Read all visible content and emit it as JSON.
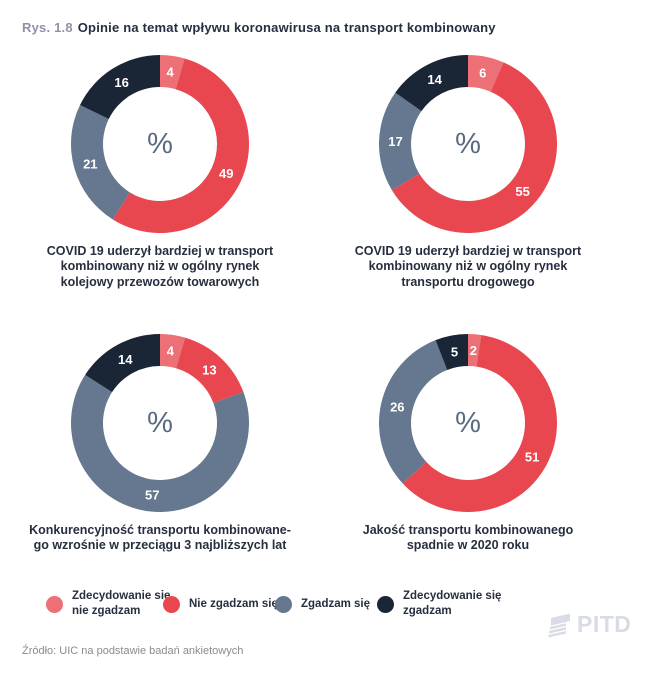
{
  "title": {
    "prefix": "Rys. 1.8",
    "text": "Opinie na temat wpływu koronawirusa na transport kombinowany"
  },
  "palette": [
    "#EE7077",
    "#E8474F",
    "#657890",
    "#1A2536"
  ],
  "value_label_color": "#FFFFFF",
  "center_label_color": "#5A6A80",
  "chart_data": [
    {
      "type": "pie",
      "subtype": "donut",
      "title": "COVID 19 uderzył bardziej w transport\nkombinowany niż w ogólny rynek\nkolejowy przewozów towarowych",
      "categories": [
        "Zdecydowanie się nie zgadzam",
        "Nie zgadzam się",
        "Zgadzam się",
        "Zdecydowanie się zgadzam"
      ],
      "values": [
        4,
        49,
        21,
        16
      ],
      "unit": "%",
      "center_label": "%"
    },
    {
      "type": "pie",
      "subtype": "donut",
      "title": "COVID 19 uderzył bardziej w transport\nkombinowany niż w ogólny rynek\ntransportu drogowego",
      "categories": [
        "Zdecydowanie się nie zgadzam",
        "Nie zgadzam się",
        "Zgadzam się",
        "Zdecydowanie się zgadzam"
      ],
      "values": [
        6,
        55,
        17,
        14
      ],
      "unit": "%",
      "center_label": "%"
    },
    {
      "type": "pie",
      "subtype": "donut",
      "title": "Konkurencyjność transportu kombinowane-\ngo wzrośnie w przeciągu 3 najbliższych lat",
      "categories": [
        "Zdecydowanie się nie zgadzam",
        "Nie zgadzam się",
        "Zgadzam się",
        "Zdecydowanie się zgadzam"
      ],
      "values": [
        4,
        13,
        57,
        14
      ],
      "unit": "%",
      "center_label": "%"
    },
    {
      "type": "pie",
      "subtype": "donut",
      "title": "Jakość transportu kombinowanego\nspadnie w 2020 roku",
      "categories": [
        "Zdecydowanie się nie zgadzam",
        "Nie zgadzam się",
        "Zgadzam się",
        "Zdecydowanie się zgadzam"
      ],
      "values": [
        2,
        51,
        26,
        5
      ],
      "unit": "%",
      "center_label": "%"
    }
  ],
  "legend": {
    "items": [
      {
        "key": "strongly-disagree",
        "label": "Zdecydowanie się\nnie zgadzam",
        "color": "#EE7077"
      },
      {
        "key": "disagree",
        "label": "Nie zgadzam się",
        "color": "#E8474F"
      },
      {
        "key": "agree",
        "label": "Zgadzam się",
        "color": "#657890"
      },
      {
        "key": "strongly-agree",
        "label": "Zdecydowanie się\nzgadzam",
        "color": "#1A2536"
      }
    ]
  },
  "source": "Źródło: UIC na podstawie badań ankietowych",
  "logo": {
    "text": "PITD"
  }
}
